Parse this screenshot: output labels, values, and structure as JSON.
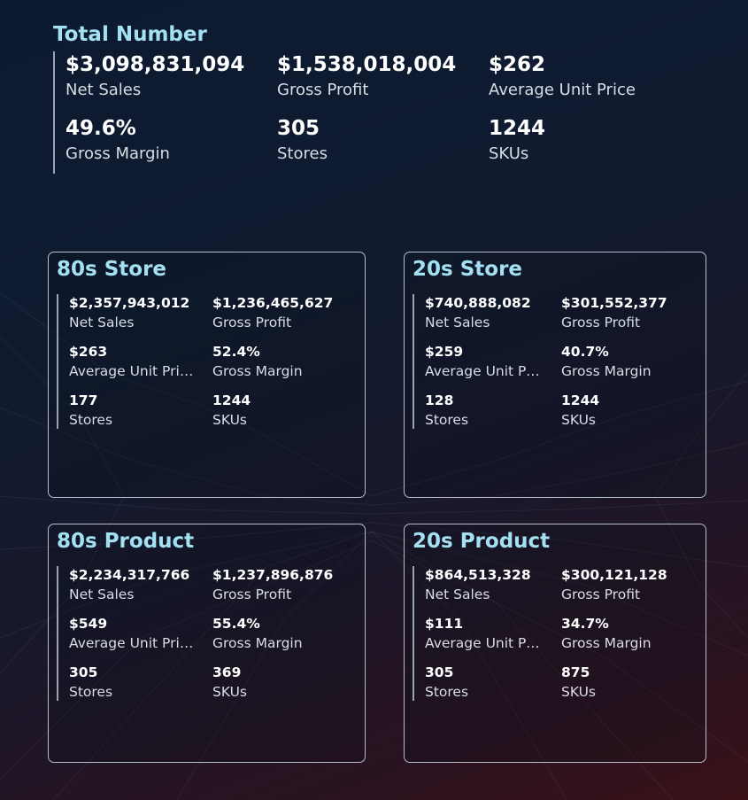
{
  "total": {
    "title": "Total Number",
    "kpis": [
      {
        "value": "$3,098,831,094",
        "label": "Net Sales"
      },
      {
        "value": "$1,538,018,004",
        "label": "Gross Profit"
      },
      {
        "value": "$262",
        "label": "Average Unit Price"
      },
      {
        "value": "49.6%",
        "label": "Gross Margin"
      },
      {
        "value": "305",
        "label": "Stores"
      },
      {
        "value": "1244",
        "label": "SKUs"
      }
    ]
  },
  "cards": [
    {
      "title": "80s Store",
      "kpis": [
        {
          "value": "$2,357,943,012",
          "label": "Net Sales"
        },
        {
          "value": "$1,236,465,627",
          "label": "Gross Profit"
        },
        {
          "value": "$263",
          "label": "Average Unit Price"
        },
        {
          "value": "52.4%",
          "label": "Gross Margin"
        },
        {
          "value": "177",
          "label": "Stores"
        },
        {
          "value": "1244",
          "label": "SKUs"
        }
      ]
    },
    {
      "title": "20s Store",
      "kpis": [
        {
          "value": "$740,888,082",
          "label": "Net Sales"
        },
        {
          "value": "$301,552,377",
          "label": "Gross Profit"
        },
        {
          "value": "$259",
          "label": "Average Unit Price"
        },
        {
          "value": "40.7%",
          "label": "Gross Margin"
        },
        {
          "value": "128",
          "label": "Stores"
        },
        {
          "value": "1244",
          "label": "SKUs"
        }
      ]
    },
    {
      "title": "80s Product",
      "kpis": [
        {
          "value": "$2,234,317,766",
          "label": "Net Sales"
        },
        {
          "value": "$1,237,896,876",
          "label": "Gross Profit"
        },
        {
          "value": "$549",
          "label": "Average Unit Price"
        },
        {
          "value": "55.4%",
          "label": "Gross Margin"
        },
        {
          "value": "305",
          "label": "Stores"
        },
        {
          "value": "369",
          "label": "SKUs"
        }
      ]
    },
    {
      "title": "20s Product",
      "kpis": [
        {
          "value": "$864,513,328",
          "label": "Net Sales"
        },
        {
          "value": "$300,121,128",
          "label": "Gross Profit"
        },
        {
          "value": "$111",
          "label": "Average Unit Price"
        },
        {
          "value": "34.7%",
          "label": "Gross Margin"
        },
        {
          "value": "305",
          "label": "Stores"
        },
        {
          "value": "875",
          "label": "SKUs"
        }
      ]
    }
  ]
}
